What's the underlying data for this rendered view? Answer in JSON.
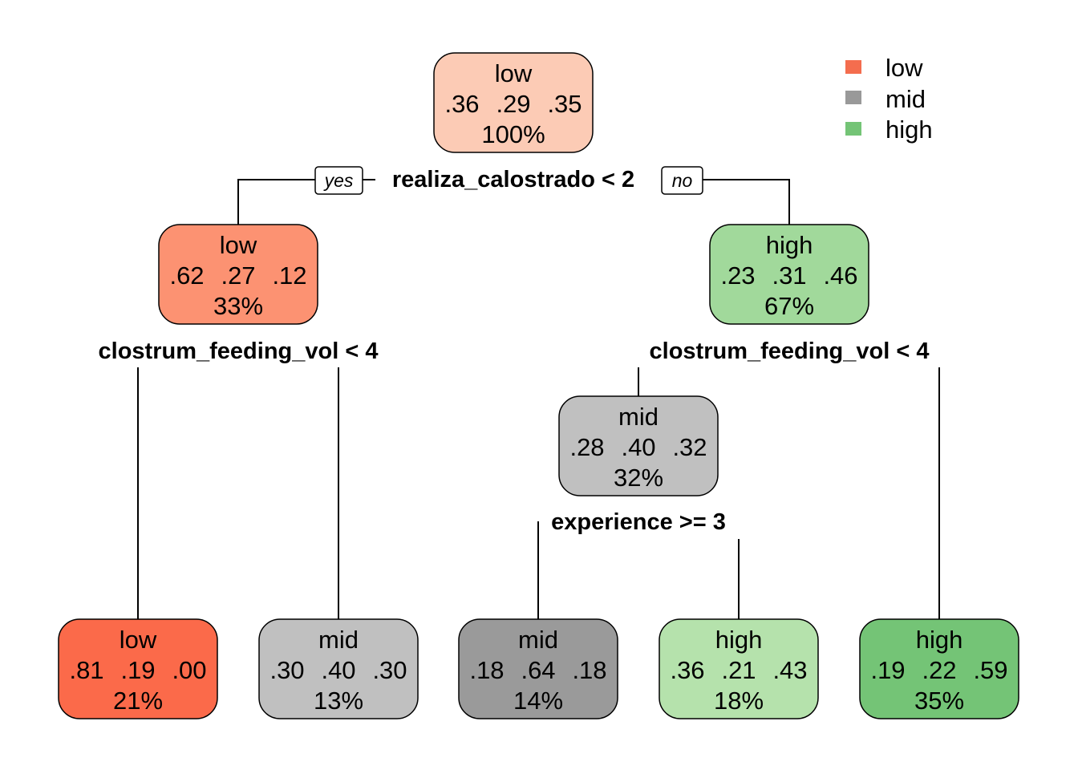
{
  "legend": [
    {
      "label": "low",
      "color": "#f46d4e"
    },
    {
      "label": "mid",
      "color": "#999999"
    },
    {
      "label": "high",
      "color": "#74c476"
    }
  ],
  "branch_labels": {
    "yes": "yes",
    "no": "no"
  },
  "splits": {
    "root": "realiza_calostrado < 2",
    "left": "clostrum_feeding_vol < 4",
    "right": "clostrum_feeding_vol < 4",
    "mid": "experience >= 3"
  },
  "nodes": {
    "n1": {
      "class": "low",
      "probs": [
        ".36",
        ".29",
        ".35"
      ],
      "pct": "100%",
      "color": "#fccbb5"
    },
    "n2": {
      "class": "low",
      "probs": [
        ".62",
        ".27",
        ".12"
      ],
      "pct": "33%",
      "color": "#fc9272"
    },
    "n3": {
      "class": "high",
      "probs": [
        ".23",
        ".31",
        ".46"
      ],
      "pct": "67%",
      "color": "#a1d99b"
    },
    "n6": {
      "class": "mid",
      "probs": [
        ".28",
        ".40",
        ".32"
      ],
      "pct": "32%",
      "color": "#c0c0c0"
    },
    "n4": {
      "class": "low",
      "probs": [
        ".81",
        ".19",
        ".00"
      ],
      "pct": "21%",
      "color": "#fb6a4a"
    },
    "n5": {
      "class": "mid",
      "probs": [
        ".30",
        ".40",
        ".30"
      ],
      "pct": "13%",
      "color": "#c0c0c0"
    },
    "n12": {
      "class": "mid",
      "probs": [
        ".18",
        ".64",
        ".18"
      ],
      "pct": "14%",
      "color": "#9a9a9a"
    },
    "n13": {
      "class": "high",
      "probs": [
        ".36",
        ".21",
        ".43"
      ],
      "pct": "18%",
      "color": "#b5e2ac"
    },
    "n7": {
      "class": "high",
      "probs": [
        ".19",
        ".22",
        ".59"
      ],
      "pct": "35%",
      "color": "#74c476"
    }
  }
}
